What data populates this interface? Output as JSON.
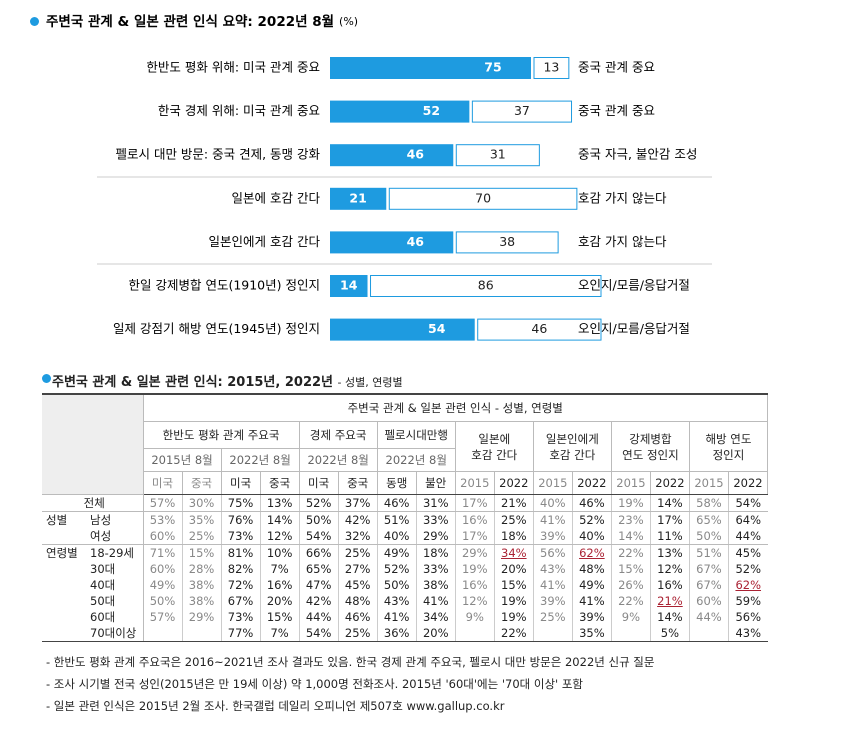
{
  "chart_data": {
    "type": "stacked_bar_h",
    "title": "주변국 관계 & 일본 관련 인식 요약: 2022년 8월",
    "unit": "(%)",
    "categories": [
      "한반도 평화 위해: 미국 관계 중요",
      "한국 경제 위해: 미국 관계 중요",
      "펠로시 대만 방문: 중국 견제, 동맹 강화",
      "일본에 호감 간다",
      "일본인에게 호감 간다",
      "한일 강제병합 연도(1910년) 정인지",
      "일제 강점기 해방 연도(1945년) 정인지"
    ],
    "right_labels": [
      "중국 관계 중요",
      "중국 관계 중요",
      "중국 자극, 불안감 조성",
      "호감 가지 않는다",
      "호감 가지 않는다",
      "오인지/모름/응답거절",
      "오인지/모름/응답거절"
    ],
    "series": [
      {
        "color": "#1e9be0",
        "values": [
          75,
          52,
          46,
          21,
          46,
          14,
          54
        ]
      },
      {
        "color": "#ffffff",
        "values": [
          13,
          37,
          31,
          70,
          38,
          86,
          46
        ]
      }
    ],
    "xlim": [
      0,
      100
    ]
  },
  "table": {
    "title": "주변국 관계 & 일본 관련 인식: 2015년, 2022년",
    "subtitle": "- 성별, 연령별",
    "top": "주변국 관계 & 일본 관련 인식 - 성별, 연령별",
    "groups": [
      [
        "한반도 평화 관계 주요국"
      ],
      [
        "경제 주요국"
      ],
      [
        "펠로시대만행"
      ],
      [
        "일본에",
        "호감 간다"
      ],
      [
        "일본인에게",
        "호감 간다"
      ],
      [
        "강제병합",
        "연도 정인지"
      ],
      [
        "해방 연도",
        "정인지"
      ]
    ],
    "periods": [
      "2015년 8월",
      "2022년 8월",
      "2022년 8월",
      "2022년 8월"
    ],
    "columns": [
      "미국",
      "중국",
      "미국",
      "중국",
      "미국",
      "중국",
      "동맹",
      "불안",
      "2015",
      "2022",
      "2015",
      "2022",
      "2015",
      "2022",
      "2015",
      "2022"
    ],
    "rows": [
      {
        "label": "전체",
        "cells": [
          "57%",
          "30%",
          "75%",
          "13%",
          "52%",
          "37%",
          "46%",
          "31%",
          "17%",
          "21%",
          "40%",
          "46%",
          "19%",
          "14%",
          "58%",
          "54%"
        ]
      },
      {
        "group": "성별",
        "label": "남성",
        "cells": [
          "53%",
          "35%",
          "76%",
          "14%",
          "50%",
          "42%",
          "51%",
          "33%",
          "16%",
          "25%",
          "41%",
          "52%",
          "23%",
          "17%",
          "65%",
          "64%"
        ]
      },
      {
        "label": "여성",
        "cells": [
          "60%",
          "25%",
          "73%",
          "12%",
          "54%",
          "32%",
          "40%",
          "29%",
          "17%",
          "18%",
          "39%",
          "40%",
          "14%",
          "11%",
          "50%",
          "44%"
        ]
      },
      {
        "group": "연령별",
        "label": "18-29세",
        "cells": [
          "71%",
          "15%",
          "81%",
          "10%",
          "66%",
          "25%",
          "49%",
          "18%",
          "29%",
          {
            "text": "34%",
            "underline": true
          },
          "56%",
          {
            "text": "62%",
            "underline": true
          },
          "22%",
          "13%",
          "51%",
          "45%"
        ]
      },
      {
        "label": "30대",
        "cells": [
          "60%",
          "28%",
          "82%",
          "7%",
          "65%",
          "27%",
          "52%",
          "33%",
          "19%",
          "20%",
          "43%",
          "48%",
          "15%",
          "12%",
          "67%",
          "52%"
        ]
      },
      {
        "label": "40대",
        "cells": [
          "49%",
          "38%",
          "72%",
          "16%",
          "47%",
          "45%",
          "50%",
          "38%",
          "16%",
          "15%",
          "41%",
          "49%",
          "26%",
          "16%",
          "67%",
          {
            "text": "62%",
            "underline": true
          }
        ]
      },
      {
        "label": "50대",
        "cells": [
          "50%",
          "38%",
          "67%",
          "20%",
          "42%",
          "48%",
          "43%",
          "41%",
          "12%",
          "19%",
          "39%",
          "41%",
          "22%",
          {
            "text": "21%",
            "underline": true
          },
          "60%",
          "59%"
        ]
      },
      {
        "label": "60대",
        "cells": [
          "57%",
          "29%",
          "73%",
          "15%",
          "44%",
          "46%",
          "41%",
          "34%",
          "9%",
          "19%",
          "25%",
          "39%",
          "9%",
          "14%",
          "44%",
          "56%"
        ]
      },
      {
        "label": "70대이상",
        "cells": [
          null,
          null,
          "77%",
          "7%",
          "54%",
          "25%",
          "36%",
          "20%",
          null,
          "22%",
          null,
          "35%",
          null,
          "5%",
          null,
          "43%"
        ]
      }
    ]
  },
  "footnotes": [
    "- 한반도 평화 관계 주요국은 2016~2021년 조사 결과도 있음. 한국 경제 관계 주요국, 펠로시 대만 방문은 2022년 신규 질문",
    "- 조사 시기별 전국 성인(2015년은 만 19세 이상) 약 1,000명 전화조사. 2015년 '60대'에는 '70대 이상' 포함",
    "- 일본 관련 인식은 2015년 2월 조사. 한국갤럽 데일리 오피니언 제507호 www.gallup.co.kr"
  ]
}
